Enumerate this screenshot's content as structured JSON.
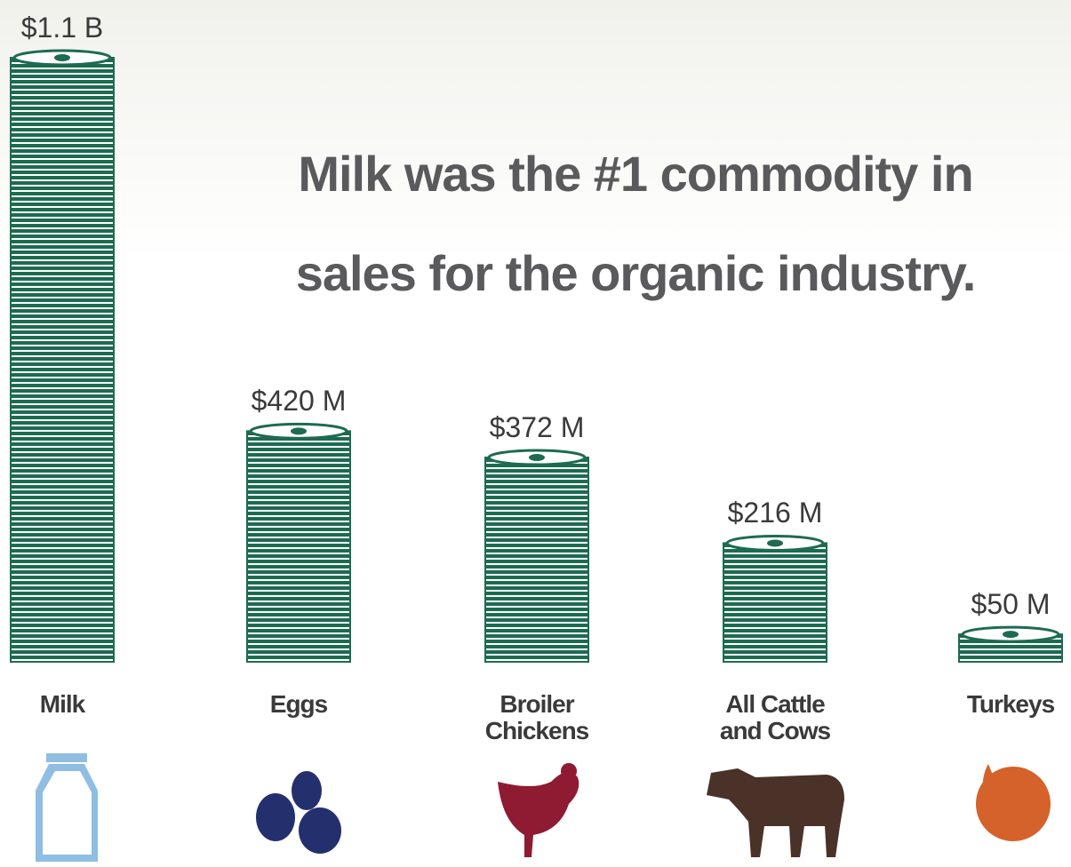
{
  "chart_data": {
    "type": "bar",
    "title": "Milk was the #1 commodity in sales for the organic industry.",
    "categories": [
      "Milk",
      "Eggs",
      "Broiler Chickens",
      "All Cattle and Cows",
      "Turkeys"
    ],
    "values": [
      1100000000,
      420000000,
      372000000,
      216000000,
      50000000
    ],
    "value_labels": [
      "$1.1 B",
      "$420 M",
      "$372 M",
      "$216 M",
      "$50 M"
    ],
    "color": "#1d6b50"
  }
}
